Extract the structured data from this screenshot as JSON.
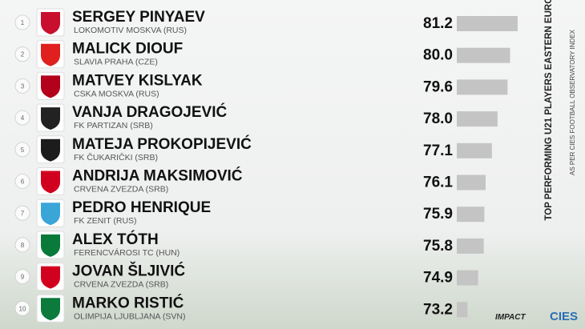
{
  "chart_data": {
    "type": "bar",
    "title": "TOP PERFORMING U21 PLAYERS EASTERN EUROPE",
    "subtitle": "AS PER CIES FOOTBALL OBSERVATORY INDEX",
    "ranks": [
      1,
      2,
      3,
      4,
      5,
      6,
      7,
      8,
      9,
      10
    ],
    "categories": [
      "SERGEY PINYAEV",
      "MALICK DIOUF",
      "MATVEY KISLYAK",
      "VANJA DRAGOJEVIĆ",
      "MATEJA PROKOPIJEVIĆ",
      "ANDRIJA MAKSIMOVIĆ",
      "PEDRO HENRIQUE",
      "ALEX TÓTH",
      "JOVAN ŠLJIVIĆ",
      "MARKO RISTIĆ"
    ],
    "clubs": [
      "LOKOMOTIV MOSKVA (RUS)",
      "SLAVIA PRAHA (CZE)",
      "CSKA MOSKVA (RUS)",
      "FK PARTIZAN (SRB)",
      "FK ČUKARIČKI (SRB)",
      "CRVENA ZVEZDA (SRB)",
      "FK ZENIT (RUS)",
      "FERENCVÁROSI TC (HUN)",
      "CRVENA ZVEZDA (SRB)",
      "OLIMPIJA LJUBLJANA (SVN)"
    ],
    "values": [
      81.2,
      80.0,
      79.6,
      78.0,
      77.1,
      76.1,
      75.9,
      75.8,
      74.9,
      73.2
    ],
    "value_labels": [
      "81.2",
      "80.0",
      "79.6",
      "78.0",
      "77.1",
      "76.1",
      "75.9",
      "75.8",
      "74.9",
      "73.2"
    ],
    "xlim": [
      71.5,
      83
    ],
    "color": "#c4c4c4",
    "brands": [
      "IMPACT",
      "CIES"
    ]
  }
}
